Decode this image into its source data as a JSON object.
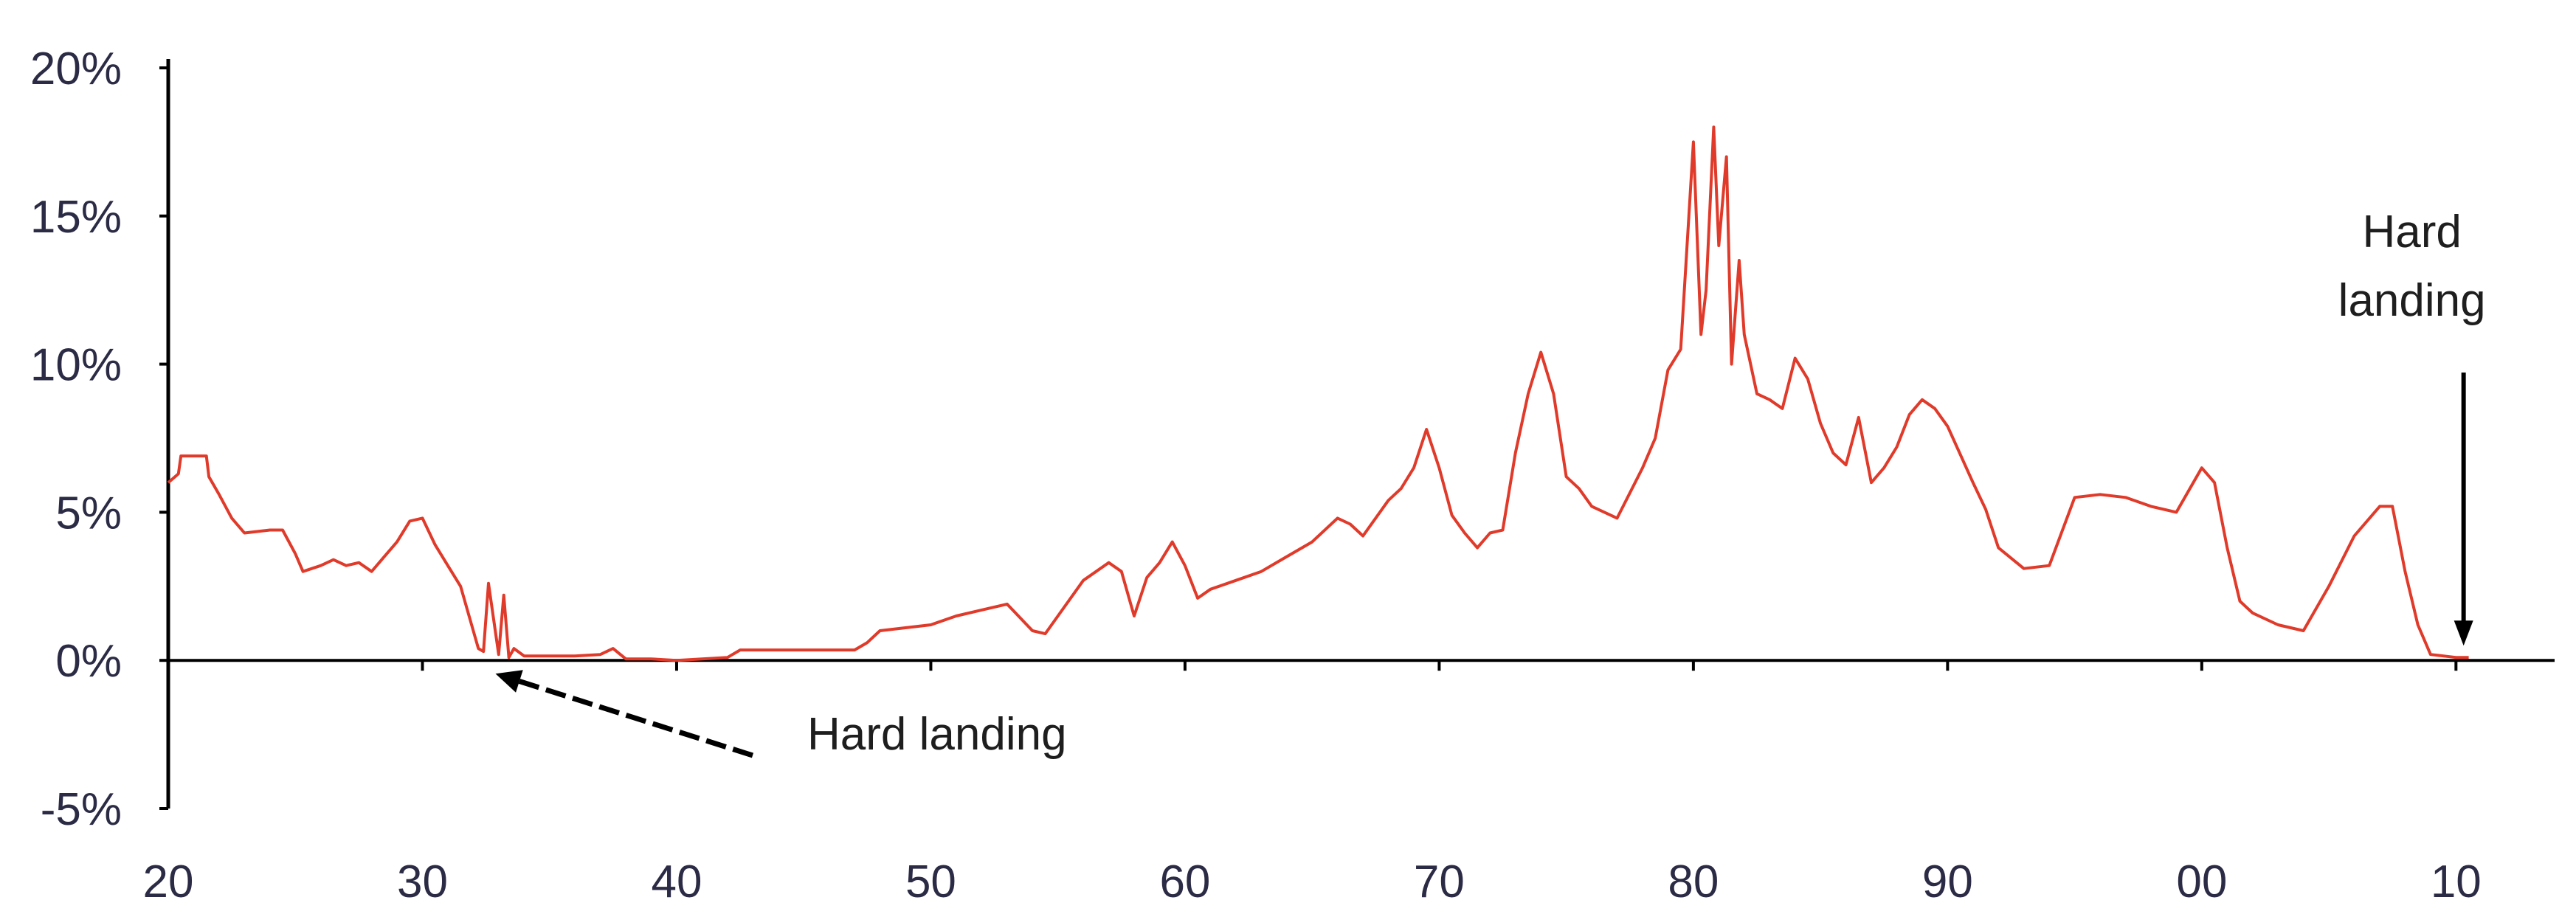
{
  "chart_data": {
    "type": "line",
    "title": "",
    "xlabel": "",
    "ylabel": "",
    "x_tick_labels": [
      "20",
      "30",
      "40",
      "50",
      "60",
      "70",
      "80",
      "90",
      "00",
      "10"
    ],
    "x_tick_years": [
      1920,
      1930,
      1940,
      1950,
      1960,
      1970,
      1980,
      1990,
      2000,
      2010
    ],
    "y_ticks": [
      20,
      15,
      10,
      5,
      0,
      -5
    ],
    "y_tick_labels": [
      "20%",
      "15%",
      "10%",
      "5%",
      "0%",
      "-5%"
    ],
    "xlim": [
      1920,
      2011.5
    ],
    "ylim": [
      -5,
      20
    ],
    "grid": false,
    "legend": "none",
    "colors": {
      "series": "#e03a2a",
      "axis": "#000000",
      "text": "#2b2b45"
    },
    "series": [
      {
        "x": [
          1920.0,
          1920.4,
          1920.5,
          1921.5,
          1921.6,
          1922.0,
          1922.5,
          1923.0,
          1924.0,
          1924.5,
          1925.0,
          1925.3,
          1926.0,
          1926.5,
          1927.0,
          1927.5,
          1928.0,
          1928.5,
          1929.0,
          1929.5,
          1930.0,
          1930.5,
          1931.0,
          1931.5,
          1932.0,
          1932.2,
          1932.4,
          1932.6,
          1933.0,
          1933.2,
          1933.4,
          1933.6,
          1934.0,
          1935.0,
          1936.0,
          1937.0,
          1937.5,
          1938.0,
          1939.0,
          1940.0,
          1941.0,
          1942.0,
          1942.5,
          1943.0,
          1944.0,
          1945.0,
          1946.0,
          1947.0,
          1947.5,
          1948.0,
          1949.0,
          1950.0,
          1951.0,
          1952.0,
          1953.0,
          1954.0,
          1954.5,
          1955.0,
          1956.0,
          1957.0,
          1957.5,
          1958.0,
          1958.5,
          1959.0,
          1959.5,
          1960.0,
          1960.5,
          1961.0,
          1962.0,
          1963.0,
          1964.0,
          1965.0,
          1966.0,
          1966.5,
          1967.0,
          1968.0,
          1968.5,
          1969.0,
          1969.5,
          1970.0,
          1970.5,
          1971.0,
          1971.5,
          1972.0,
          1972.5,
          1973.0,
          1973.5,
          1974.0,
          1974.5,
          1975.0,
          1975.5,
          1976.0,
          1977.0,
          1978.0,
          1978.5,
          1979.0,
          1979.5,
          1980.0,
          1980.3,
          1980.5,
          1980.8,
          1981.0,
          1981.3,
          1981.5,
          1981.8,
          1982.0,
          1982.5,
          1983.0,
          1983.5,
          1984.0,
          1984.5,
          1985.0,
          1985.5,
          1986.0,
          1986.5,
          1987.0,
          1987.5,
          1988.0,
          1988.5,
          1989.0,
          1989.5,
          1990.0,
          1991.0,
          1991.5,
          1992.0,
          1993.0,
          1994.0,
          1995.0,
          1996.0,
          1997.0,
          1998.0,
          1999.0,
          2000.0,
          2000.5,
          2001.0,
          2001.5,
          2002.0,
          2003.0,
          2004.0,
          2005.0,
          2006.0,
          2007.0,
          2007.5,
          2008.0,
          2008.5,
          2009.0,
          2010.0,
          2010.5
        ],
        "y": [
          6.0,
          6.3,
          6.9,
          6.9,
          6.2,
          5.6,
          4.8,
          4.3,
          4.4,
          4.4,
          3.6,
          3.0,
          3.2,
          3.4,
          3.2,
          3.3,
          3.0,
          3.5,
          4.0,
          4.7,
          4.8,
          3.9,
          3.2,
          2.5,
          1.0,
          0.4,
          0.3,
          2.6,
          0.2,
          2.2,
          0.1,
          0.4,
          0.15,
          0.15,
          0.15,
          0.2,
          0.4,
          0.05,
          0.05,
          0.0,
          0.05,
          0.1,
          0.35,
          0.35,
          0.35,
          0.35,
          0.35,
          0.35,
          0.6,
          1.0,
          1.1,
          1.2,
          1.5,
          1.7,
          1.9,
          1.0,
          0.9,
          1.5,
          2.7,
          3.3,
          3.0,
          1.5,
          2.8,
          3.3,
          4.0,
          3.2,
          2.1,
          2.4,
          2.7,
          3.0,
          3.5,
          4.0,
          4.8,
          4.6,
          4.2,
          5.4,
          5.8,
          6.5,
          7.8,
          6.5,
          4.9,
          4.3,
          3.8,
          4.3,
          4.4,
          7.0,
          9.0,
          10.4,
          9.0,
          6.2,
          5.8,
          5.2,
          4.8,
          6.5,
          7.5,
          9.8,
          10.5,
          17.5,
          11.0,
          12.5,
          18.0,
          14.0,
          17.0,
          10.0,
          13.5,
          11.0,
          9.0,
          8.8,
          8.5,
          10.2,
          9.5,
          8.0,
          7.0,
          6.6,
          8.2,
          6.0,
          6.5,
          7.2,
          8.3,
          8.8,
          8.5,
          7.9,
          6.0,
          5.1,
          3.8,
          3.1,
          3.2,
          5.5,
          5.6,
          5.5,
          5.2,
          5.0,
          6.5,
          6.0,
          3.8,
          2.0,
          1.6,
          1.2,
          1.0,
          2.5,
          4.2,
          5.2,
          5.2,
          3.0,
          1.2,
          0.2,
          0.1,
          0.1
        ]
      }
    ],
    "annotations": [
      {
        "text": "Hard landing",
        "x": 1932.7,
        "y": 0.0
      },
      {
        "line1": "Hard",
        "line2": "landing",
        "x": 2010.3,
        "y": 0.0
      }
    ]
  }
}
